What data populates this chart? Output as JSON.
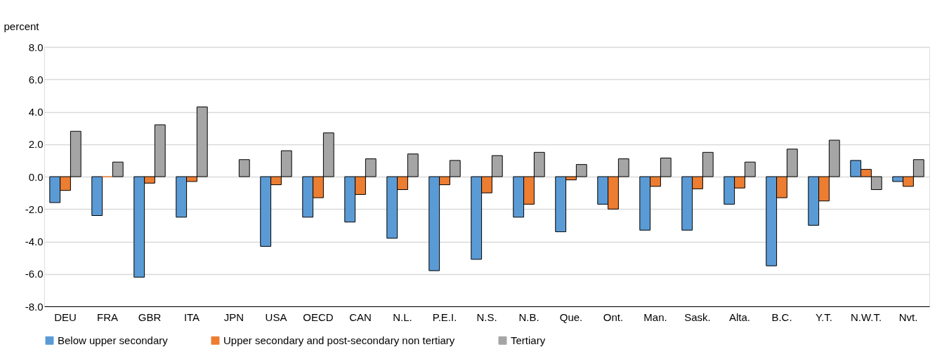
{
  "chart_data": {
    "type": "bar",
    "ylabel": "percent",
    "categories": [
      "DEU",
      "FRA",
      "GBR",
      "ITA",
      "JPN",
      "USA",
      "OECD",
      "CAN",
      "N.L.",
      "P.E.I.",
      "N.S.",
      "N.B.",
      "Que.",
      "Ont.",
      "Man.",
      "Sask.",
      "Alta.",
      "B.C.",
      "Y.T.",
      "N.W.T.",
      "Nvt."
    ],
    "series": [
      {
        "name": "Below upper secondary",
        "color": "#5b9bd5",
        "values": [
          -1.6,
          -2.4,
          -6.2,
          -2.5,
          null,
          -4.3,
          -2.5,
          -2.8,
          -3.8,
          -5.8,
          -5.1,
          -2.5,
          -3.4,
          -1.7,
          -3.3,
          -3.3,
          -1.7,
          -5.5,
          -3.0,
          1.0,
          -0.3
        ]
      },
      {
        "name": "Upper secondary and post-secondary non tertiary",
        "color": "#ed7d31",
        "values": [
          -0.85,
          0.0,
          -0.4,
          -0.3,
          null,
          -0.5,
          -1.3,
          -1.1,
          -0.8,
          -0.5,
          -1.0,
          -1.7,
          -0.2,
          -2.0,
          -0.6,
          -0.75,
          -0.7,
          -1.3,
          -1.5,
          0.45,
          -0.6
        ]
      },
      {
        "name": "Tertiary",
        "color": "#a5a5a5",
        "values": [
          2.8,
          0.9,
          3.2,
          4.3,
          1.05,
          1.6,
          2.7,
          1.1,
          1.4,
          1.0,
          1.3,
          1.5,
          0.75,
          1.1,
          1.15,
          1.5,
          0.9,
          1.7,
          2.25,
          -0.8,
          1.05
        ]
      }
    ],
    "ylim": [
      -8,
      8
    ],
    "yticks": [
      {
        "value": -8,
        "label": "-8.0"
      },
      {
        "value": -6,
        "label": "-6.0"
      },
      {
        "value": -4,
        "label": "-4.0"
      },
      {
        "value": -2,
        "label": "-2.0"
      },
      {
        "value": 0,
        "label": "0.0"
      },
      {
        "value": 2,
        "label": "2.0"
      },
      {
        "value": 4,
        "label": "4.0"
      },
      {
        "value": 6,
        "label": "6.0"
      },
      {
        "value": 8,
        "label": "8.0"
      }
    ],
    "grid": "y",
    "legend": "bottom"
  }
}
